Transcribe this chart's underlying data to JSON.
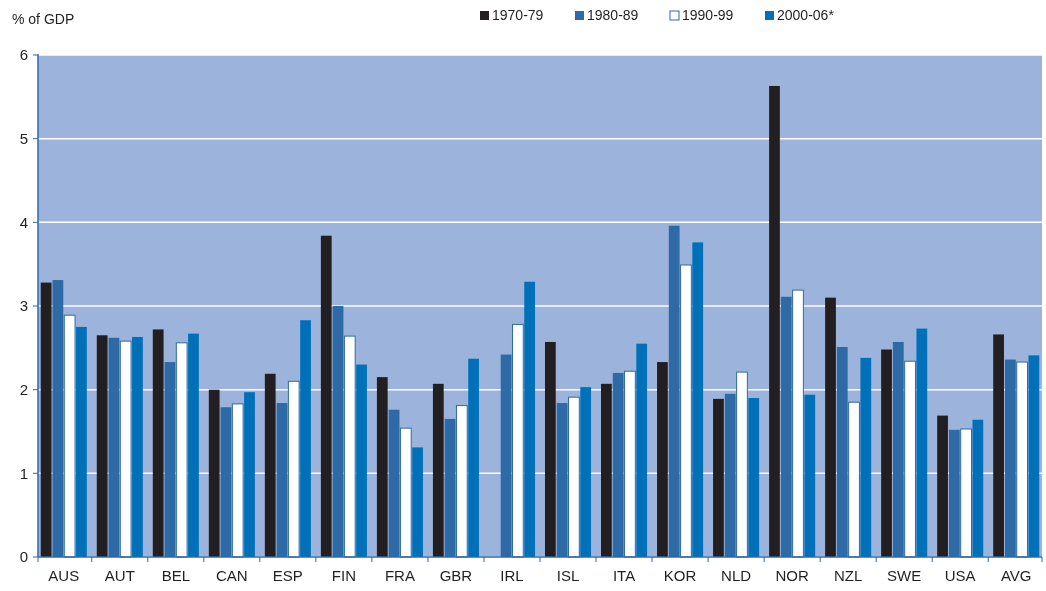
{
  "chart_data": {
    "type": "bar",
    "ylabel": "% of GDP",
    "categories": [
      "AUS",
      "AUT",
      "BEL",
      "CAN",
      "ESP",
      "FIN",
      "FRA",
      "GBR",
      "IRL",
      "ISL",
      "ITA",
      "KOR",
      "NLD",
      "NOR",
      "NZL",
      "SWE",
      "USA",
      "AVG"
    ],
    "series": [
      {
        "name": "1970-79",
        "color": "#231f20",
        "values": [
          3.28,
          2.65,
          2.72,
          2.0,
          2.19,
          3.84,
          2.15,
          2.07,
          null,
          2.57,
          2.07,
          2.33,
          1.89,
          5.63,
          3.1,
          2.48,
          1.69,
          2.66
        ]
      },
      {
        "name": "1980-89",
        "color": "#2e6aa6",
        "values": [
          3.31,
          2.62,
          2.33,
          1.79,
          1.84,
          3.0,
          1.76,
          1.65,
          2.42,
          1.84,
          2.2,
          3.96,
          1.95,
          3.11,
          2.51,
          2.57,
          1.52,
          2.36
        ]
      },
      {
        "name": "1990-99",
        "color": "#ffffff",
        "values": [
          2.89,
          2.58,
          2.56,
          1.83,
          2.1,
          2.64,
          1.54,
          1.81,
          2.78,
          1.91,
          2.22,
          3.49,
          2.21,
          3.19,
          1.85,
          2.34,
          1.53,
          2.33
        ]
      },
      {
        "name": "2000-06*",
        "color": "#0071b9",
        "values": [
          2.75,
          2.63,
          2.67,
          1.97,
          2.83,
          2.3,
          1.31,
          2.37,
          3.29,
          2.03,
          2.55,
          3.76,
          1.9,
          1.94,
          2.38,
          2.73,
          1.64,
          2.41
        ]
      }
    ],
    "ylim": [
      0,
      6
    ],
    "yticks": [
      0,
      1,
      2,
      3,
      4,
      5,
      6
    ],
    "grid": "y",
    "legend": "top"
  }
}
